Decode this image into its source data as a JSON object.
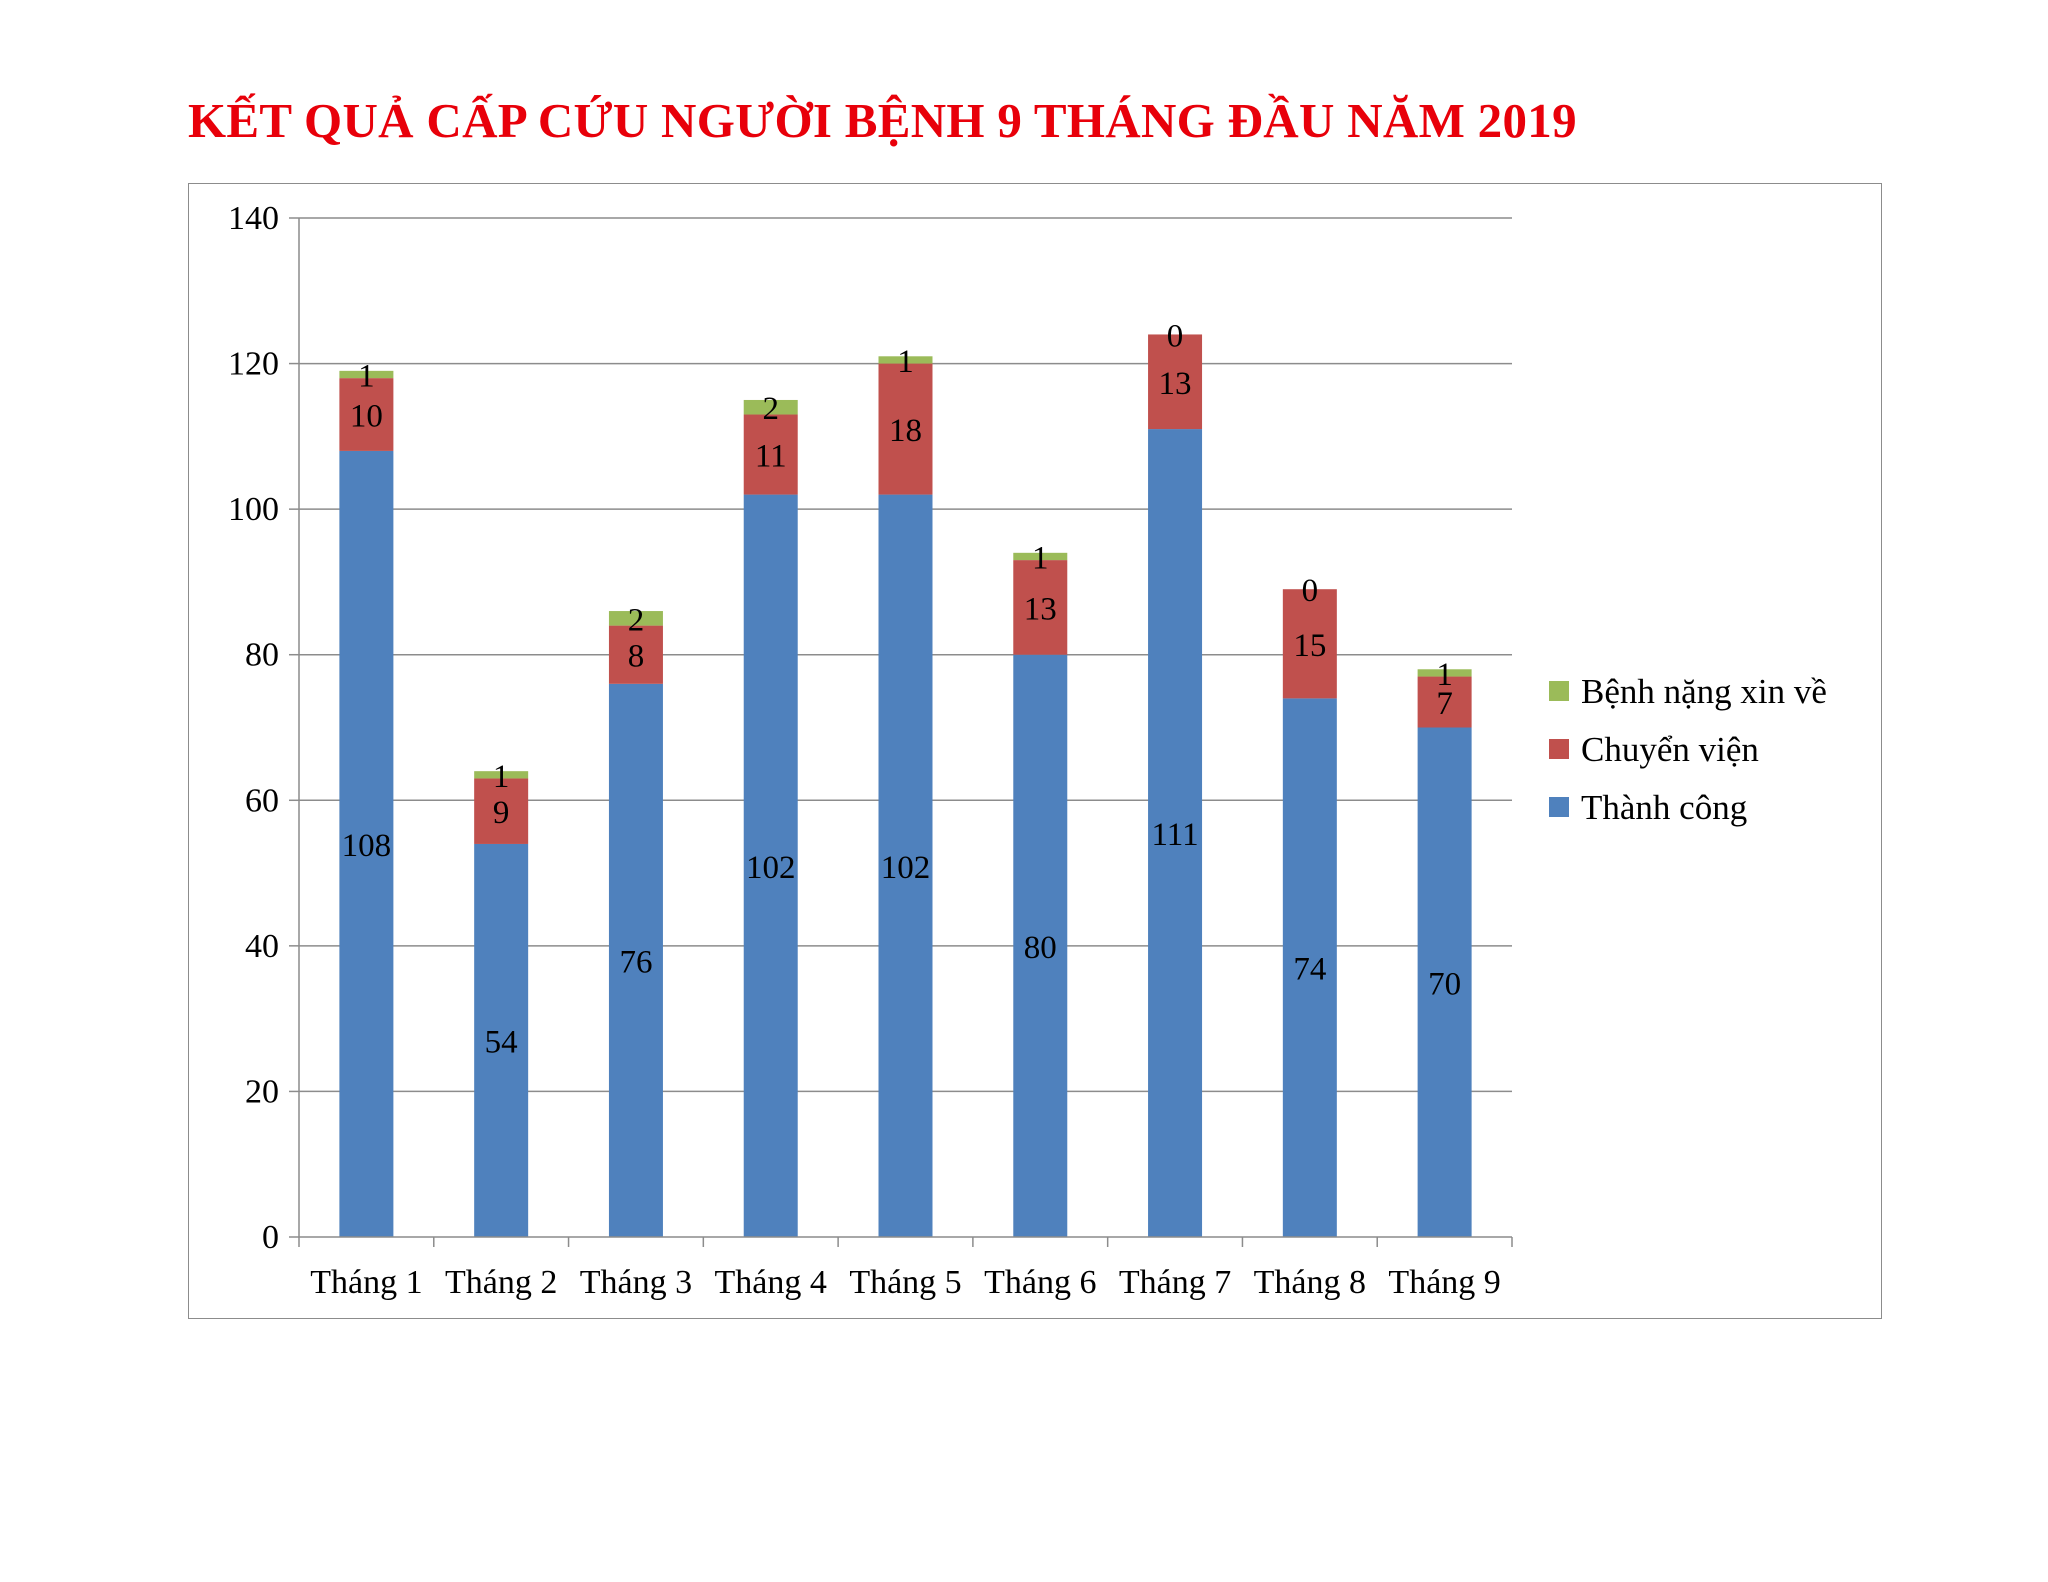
{
  "title": "KẾT QUẢ CẤP CỨU NGƯỜI BỆNH 9 THÁNG ĐẦU NĂM 2019",
  "colors": {
    "title": "#e8000a",
    "grid": "#8c8c8c",
    "axis": "#8c8c8c"
  },
  "chart_data": {
    "type": "bar",
    "stacked": true,
    "categories": [
      "Tháng 1",
      "Tháng 2",
      "Tháng 3",
      "Tháng 4",
      "Tháng 5",
      "Tháng 6",
      "Tháng 7",
      "Tháng 8",
      "Tháng 9"
    ],
    "series": [
      {
        "name": "Thành công",
        "color": "#4f81bd",
        "values": [
          108,
          54,
          76,
          102,
          102,
          80,
          111,
          74,
          70
        ]
      },
      {
        "name": "Chuyển viện",
        "color": "#c0504d",
        "values": [
          10,
          9,
          8,
          11,
          18,
          13,
          13,
          15,
          7
        ]
      },
      {
        "name": "Bệnh nặng xin về",
        "color": "#9bbb59",
        "values": [
          1,
          1,
          2,
          2,
          1,
          1,
          0,
          0,
          1
        ]
      }
    ],
    "ylim": [
      0,
      140
    ],
    "yticks": [
      0,
      20,
      40,
      60,
      80,
      100,
      120,
      140
    ],
    "grid": true,
    "data_labels": true,
    "legend": {
      "position": "right",
      "order": [
        "Bệnh nặng xin về",
        "Chuyển viện",
        "Thành công"
      ]
    }
  }
}
